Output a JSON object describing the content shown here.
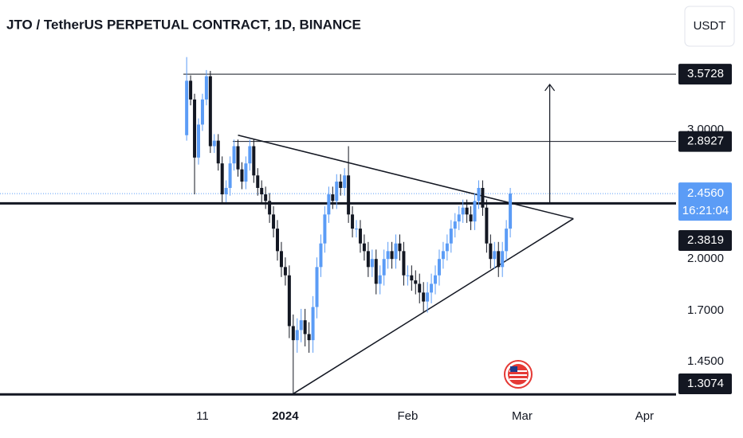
{
  "chart_data": {
    "type": "candlestick",
    "title": "JTO / TetherUS PERPETUAL CONTRACT, 1D, BINANCE",
    "currency": "USDT",
    "log_scale": true,
    "up_color": "#5b9cf6",
    "down_color": "#131722",
    "x": [
      -4,
      -3,
      -2,
      -1,
      0,
      1,
      2,
      3,
      4,
      5,
      6,
      7,
      8,
      9,
      10,
      11,
      12,
      13,
      14,
      15,
      16,
      17,
      18,
      19,
      20,
      21,
      22,
      23,
      24,
      25,
      26,
      27,
      28,
      29,
      30,
      31,
      32,
      33,
      34,
      35,
      36,
      37,
      38,
      39,
      40,
      41,
      42,
      43,
      44,
      45,
      46,
      47,
      48,
      49,
      50,
      51,
      52,
      53,
      54,
      55,
      56,
      57,
      58,
      59,
      60,
      61,
      62,
      63,
      64,
      65,
      66,
      67,
      68,
      69,
      70,
      71,
      72,
      73,
      74,
      75,
      76,
      77,
      78
    ],
    "open": [
      2.95,
      3.5,
      3.3,
      2.75,
      3.05,
      3.3,
      3.55,
      2.85,
      2.9,
      2.7,
      2.45,
      2.5,
      2.7,
      2.85,
      2.65,
      2.55,
      2.7,
      2.85,
      2.6,
      2.5,
      2.45,
      2.4,
      2.3,
      2.2,
      2.05,
      1.95,
      1.9,
      1.62,
      1.55,
      1.6,
      1.65,
      1.58,
      1.55,
      1.72,
      1.95,
      2.1,
      2.3,
      2.45,
      2.4,
      2.55,
      2.5,
      2.6,
      2.3,
      2.2,
      2.2,
      2.1,
      2.05,
      1.95,
      2.0,
      1.85,
      1.9,
      2.0,
      2.05,
      2.0,
      2.1,
      2.05,
      1.9,
      1.9,
      1.87,
      1.85,
      1.8,
      1.75,
      1.8,
      1.85,
      1.9,
      2.0,
      2.05,
      2.1,
      2.2,
      2.25,
      2.3,
      2.35,
      2.3,
      2.25,
      2.4,
      2.5,
      2.35,
      2.1,
      2.0,
      2.05,
      1.95,
      2.05,
      2.2
    ],
    "high": [
      3.77,
      3.56,
      3.36,
      3.11,
      3.36,
      3.62,
      3.61,
      2.96,
      2.96,
      2.76,
      2.56,
      2.76,
      2.91,
      2.91,
      2.71,
      2.76,
      2.91,
      2.91,
      2.66,
      2.56,
      2.51,
      2.46,
      2.36,
      2.26,
      2.11,
      2.01,
      1.96,
      1.68,
      1.66,
      1.71,
      1.71,
      1.64,
      1.78,
      2.01,
      2.16,
      2.36,
      2.51,
      2.51,
      2.61,
      2.61,
      2.66,
      2.85,
      2.36,
      2.26,
      2.26,
      2.16,
      2.11,
      2.06,
      2.06,
      1.96,
      2.06,
      2.11,
      2.11,
      2.16,
      2.16,
      2.11,
      1.96,
      1.96,
      1.93,
      1.91,
      1.86,
      1.86,
      1.91,
      1.96,
      2.06,
      2.11,
      2.16,
      2.26,
      2.31,
      2.36,
      2.41,
      2.41,
      2.36,
      2.46,
      2.56,
      2.56,
      2.41,
      2.16,
      2.11,
      2.11,
      2.11,
      2.26,
      2.5
    ],
    "low": [
      2.9,
      3.24,
      2.45,
      2.69,
      2.99,
      3.24,
      2.79,
      2.79,
      2.64,
      2.39,
      2.39,
      2.44,
      2.64,
      2.59,
      2.49,
      2.49,
      2.64,
      2.54,
      2.44,
      2.39,
      2.34,
      2.24,
      2.14,
      1.99,
      1.89,
      1.84,
      1.56,
      1.31,
      1.49,
      1.54,
      1.52,
      1.49,
      1.49,
      1.66,
      1.89,
      2.04,
      2.24,
      2.34,
      2.34,
      2.44,
      2.44,
      2.24,
      2.14,
      2.14,
      2.04,
      1.99,
      1.89,
      1.89,
      1.79,
      1.79,
      1.84,
      1.94,
      1.94,
      1.94,
      1.99,
      1.84,
      1.84,
      1.81,
      1.79,
      1.74,
      1.69,
      1.69,
      1.74,
      1.79,
      1.84,
      1.94,
      1.99,
      2.04,
      2.14,
      2.19,
      2.24,
      2.24,
      2.19,
      2.19,
      2.34,
      2.29,
      2.04,
      1.94,
      1.94,
      1.89,
      1.89,
      1.99,
      2.14
    ],
    "close": [
      3.5,
      3.3,
      2.75,
      3.05,
      3.3,
      3.55,
      2.85,
      2.9,
      2.7,
      2.45,
      2.5,
      2.7,
      2.85,
      2.65,
      2.55,
      2.7,
      2.85,
      2.6,
      2.5,
      2.45,
      2.4,
      2.3,
      2.2,
      2.05,
      1.95,
      1.9,
      1.62,
      1.55,
      1.6,
      1.65,
      1.58,
      1.55,
      1.72,
      1.95,
      2.1,
      2.3,
      2.45,
      2.4,
      2.55,
      2.5,
      2.6,
      2.3,
      2.2,
      2.2,
      2.1,
      2.05,
      1.95,
      2.0,
      1.85,
      1.9,
      2.0,
      2.05,
      2.0,
      2.1,
      2.05,
      1.9,
      1.9,
      1.87,
      1.85,
      1.8,
      1.75,
      1.8,
      1.85,
      1.9,
      2.0,
      2.05,
      2.1,
      2.2,
      2.25,
      2.3,
      2.35,
      2.3,
      2.25,
      2.4,
      2.5,
      2.35,
      2.1,
      2.0,
      2.05,
      1.95,
      2.05,
      2.2,
      2.456
    ],
    "ylim": [
      1.26,
      4.51
    ],
    "yticks": [
      {
        "value": 1.45,
        "label": "1.4500"
      },
      {
        "value": 1.7,
        "label": "1.7000"
      },
      {
        "value": 2,
        "label": "2.0000"
      },
      {
        "value": 3,
        "label": "3.0000"
      }
    ],
    "xlim": [
      -51.3,
      120
    ],
    "xticks": [
      {
        "value": 0,
        "label": "11"
      },
      {
        "value": 21,
        "label": "2024"
      },
      {
        "value": 52,
        "label": "Feb"
      },
      {
        "value": 81,
        "label": "Mar"
      },
      {
        "value": 112,
        "label": "Apr"
      }
    ],
    "levels": [
      {
        "value": 3.5728,
        "label": "3.5728"
      },
      {
        "value": 2.8927,
        "label": "2.8927"
      },
      {
        "value": 2.3819,
        "label": "2.3819"
      },
      {
        "value": 1.3074,
        "label": "1.3074"
      }
    ],
    "current": {
      "value": 2.456,
      "label": "2.4560",
      "countdown": "16:21:04",
      "color": "#5b9cf6"
    },
    "trendlines": [
      {
        "x": [
          9,
          94
        ],
        "y": [
          2.95,
          2.27
        ]
      },
      {
        "x": [
          23,
          94
        ],
        "y": [
          1.31,
          2.27
        ]
      }
    ],
    "arrow": {
      "x": 88,
      "y": [
        2.38,
        3.46
      ]
    }
  }
}
